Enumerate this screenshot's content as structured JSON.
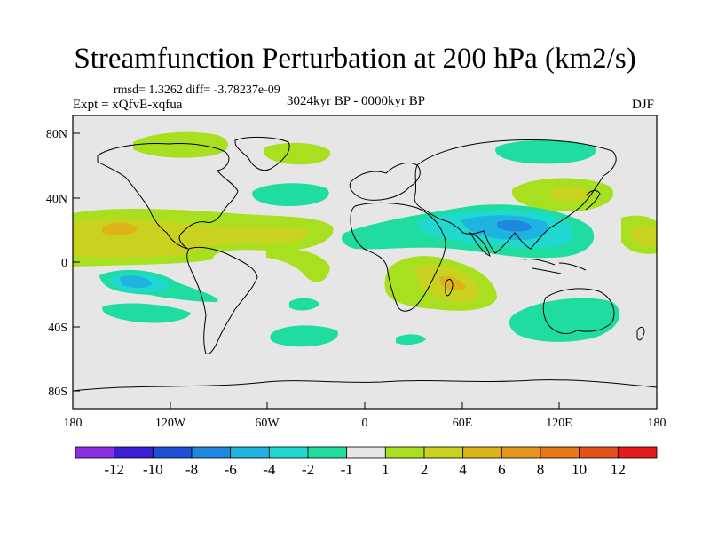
{
  "title": "Streamfunction Perturbation at 200 hPa (km2/s)",
  "stats": "rmsd= 1.3262 diff= -3.78237e-09",
  "experiment": "Expt = xQfvE-xqfua",
  "period": "3024kyr BP - 0000kyr BP",
  "season": "DJF",
  "lat_labels": [
    "80N",
    "40N",
    "0",
    "40S",
    "80S"
  ],
  "lon_labels": [
    "180",
    "120W",
    "60W",
    "0",
    "60E",
    "120E",
    "180"
  ],
  "colorbar": {
    "colors": [
      "#8b2fe3",
      "#3a1fd6",
      "#1f4fd6",
      "#1f87e0",
      "#1fb4e0",
      "#1fd8d0",
      "#1fdca0",
      "#e6e6e6",
      "#a8e01f",
      "#c8d21f",
      "#dcb41a",
      "#e6961a",
      "#e6781a",
      "#e6501a",
      "#e61a1a"
    ],
    "labels": [
      "-12",
      "-10",
      "-8",
      "-6",
      "-4",
      "-2",
      "-1",
      "1",
      "2",
      "4",
      "6",
      "8",
      "10",
      "12"
    ]
  },
  "colors": {
    "background": "#e6e6e6",
    "neg_light": "#1fdca0",
    "neg_mid": "#1fd8d0",
    "neg_strong": "#1fb4e0",
    "neg_deep": "#1f87e0",
    "pos_light": "#a8e01f",
    "pos_mid": "#c8d21f",
    "pos_strong": "#dcb41a"
  }
}
